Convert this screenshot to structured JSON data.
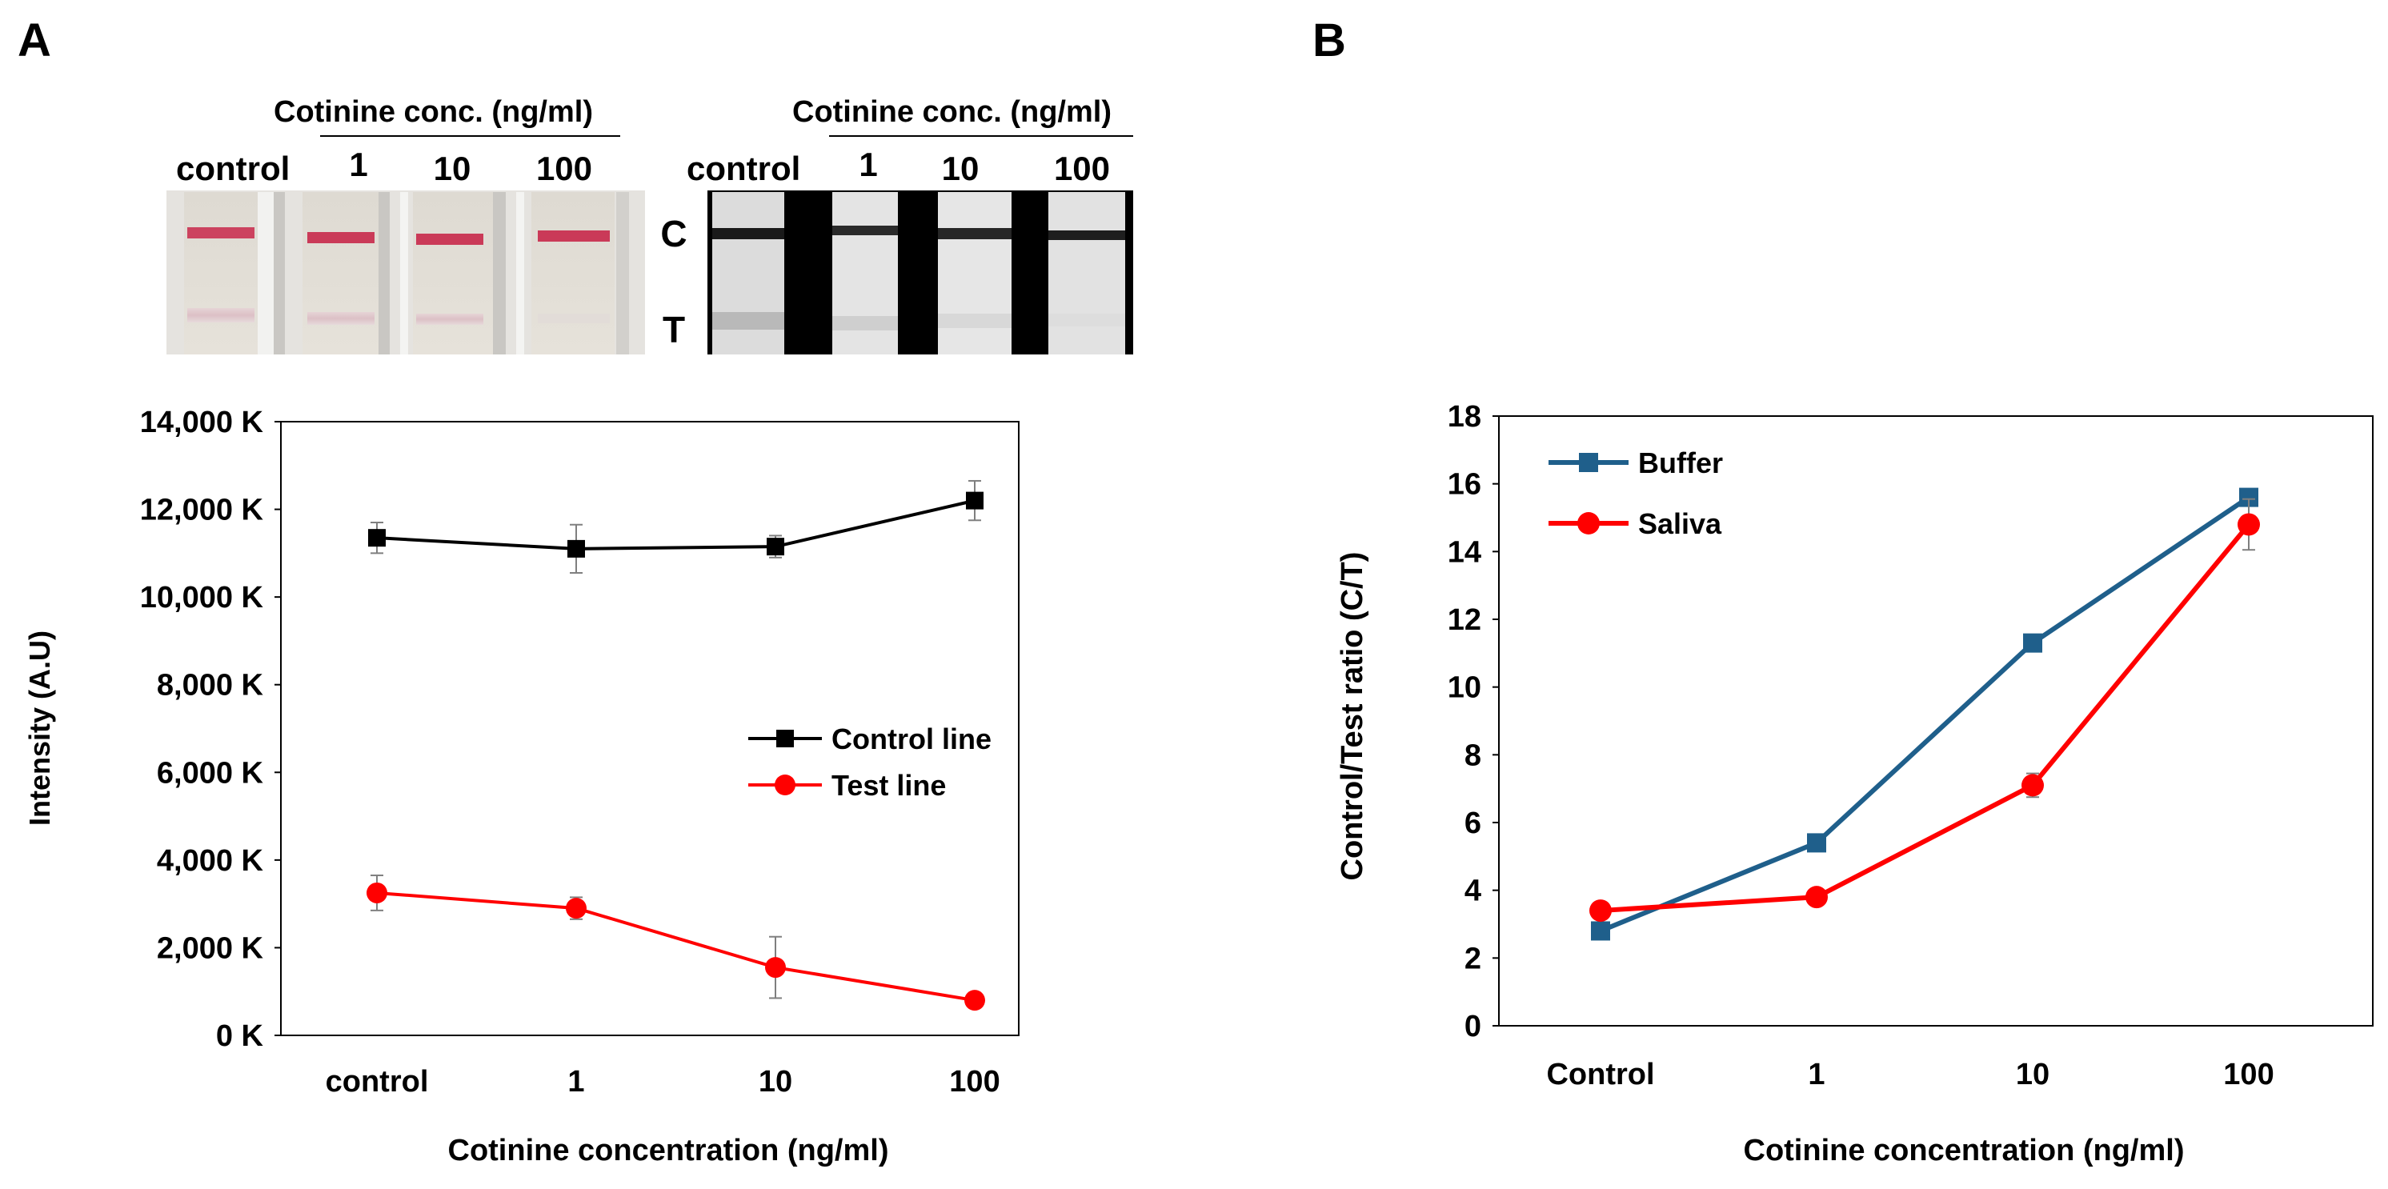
{
  "panel_a": {
    "letter": "A",
    "strips": {
      "group_label": "Cotinine  conc. (ng/ml)",
      "lane_labels": [
        "control",
        "1",
        "10",
        "100"
      ],
      "line_labels": {
        "control_line": "C",
        "test_line": "T"
      }
    }
  },
  "panel_b": {
    "letter": "B"
  },
  "colors": {
    "black_series": "#000000",
    "red_series": "#ff0000",
    "blue_series": "#1f5f8b",
    "strip_band": "#c8284a",
    "error_bar": "#7f7f7f"
  },
  "chart_data": [
    {
      "type": "line",
      "xlabel": "Cotinine concentration (ng/ml)",
      "ylabel": "Intensity (A.U)",
      "categories": [
        "control",
        "1",
        "10",
        "100"
      ],
      "ylim": [
        0,
        14000
      ],
      "yticks": [
        {
          "value": 0,
          "label": "0 K"
        },
        {
          "value": 2000,
          "label": "2,000 K"
        },
        {
          "value": 4000,
          "label": "4,000 K"
        },
        {
          "value": 6000,
          "label": "6,000 K"
        },
        {
          "value": 8000,
          "label": "8,000 K"
        },
        {
          "value": 10000,
          "label": "10,000 K"
        },
        {
          "value": 12000,
          "label": "12,000 K"
        },
        {
          "value": 14000,
          "label": "14,000 K"
        }
      ],
      "grid": false,
      "legend_position": "middle-right",
      "series": [
        {
          "name": "Control line",
          "marker": "square",
          "color": "#000000",
          "values": [
            11350,
            11100,
            11150,
            12200
          ],
          "errors": [
            350,
            550,
            250,
            450
          ]
        },
        {
          "name": "Test line",
          "marker": "circle",
          "color": "#ff0000",
          "values": [
            3250,
            2900,
            1550,
            800
          ],
          "errors": [
            400,
            250,
            700,
            0
          ]
        }
      ]
    },
    {
      "type": "line",
      "xlabel": "Cotinine concentration (ng/ml)",
      "ylabel": "Control/Test ratio (C/T)",
      "categories": [
        "Control",
        "1",
        "10",
        "100"
      ],
      "ylim": [
        0,
        18
      ],
      "yticks": [
        {
          "value": 0,
          "label": "0"
        },
        {
          "value": 2,
          "label": "2"
        },
        {
          "value": 4,
          "label": "4"
        },
        {
          "value": 6,
          "label": "6"
        },
        {
          "value": 8,
          "label": "8"
        },
        {
          "value": 10,
          "label": "10"
        },
        {
          "value": 12,
          "label": "12"
        },
        {
          "value": 14,
          "label": "14"
        },
        {
          "value": 16,
          "label": "16"
        },
        {
          "value": 18,
          "label": "18"
        }
      ],
      "grid": false,
      "legend_position": "top-left",
      "series": [
        {
          "name": "Buffer",
          "marker": "square",
          "color": "#1f5f8b",
          "values": [
            2.8,
            5.4,
            11.3,
            15.6
          ],
          "errors": [
            0.1,
            0.15,
            0.15,
            0.2
          ]
        },
        {
          "name": "Saliva",
          "marker": "circle",
          "color": "#ff0000",
          "values": [
            3.4,
            3.8,
            7.1,
            14.8
          ],
          "errors": [
            0.1,
            0.1,
            0.35,
            0.75
          ]
        }
      ]
    }
  ]
}
